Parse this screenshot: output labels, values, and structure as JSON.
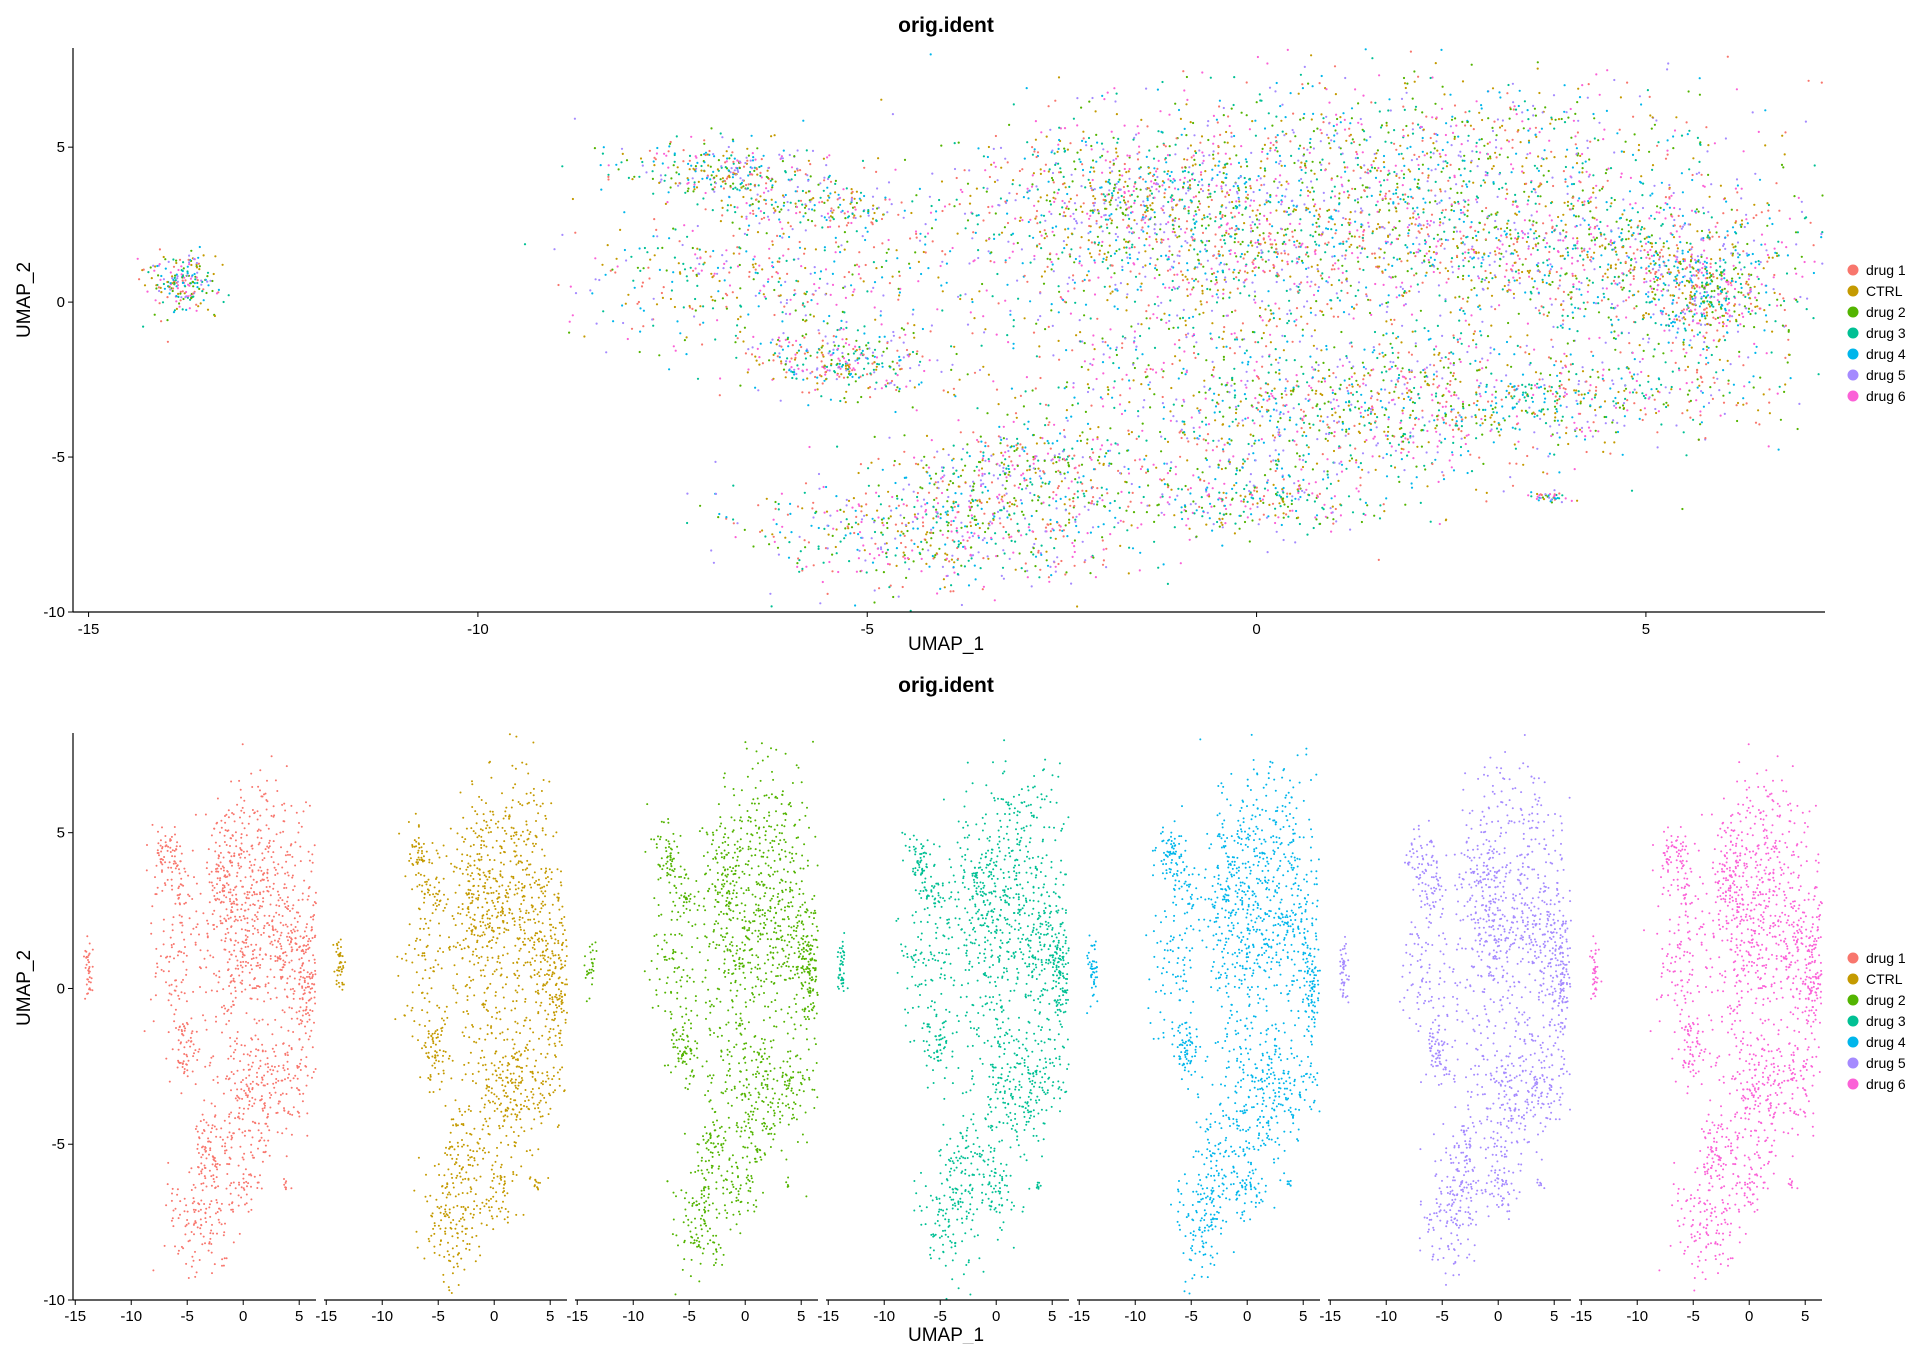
{
  "chart_data": [
    {
      "type": "scatter",
      "title": "orig.ident",
      "xlabel": "UMAP_1",
      "ylabel": "UMAP_2",
      "xlim": [
        -15.2,
        7.3
      ],
      "ylim": [
        -10.0,
        8.2
      ],
      "x_ticks": [
        -15,
        -10,
        -5,
        0,
        5
      ],
      "y_ticks": [
        -10,
        -5,
        0,
        5
      ],
      "legend_position": "right",
      "legend": [
        "drug 1",
        "CTRL",
        "drug 2",
        "drug 3",
        "drug 4",
        "drug 5",
        "drug 6"
      ],
      "series": [
        {
          "name": "drug 1",
          "color": "#F8766D"
        },
        {
          "name": "CTRL",
          "color": "#C49A00"
        },
        {
          "name": "drug 2",
          "color": "#53B400"
        },
        {
          "name": "drug 3",
          "color": "#00C094"
        },
        {
          "name": "drug 4",
          "color": "#00B6EB"
        },
        {
          "name": "drug 5",
          "color": "#A58AFF"
        },
        {
          "name": "drug 6",
          "color": "#FB61D7"
        }
      ],
      "clusters": [
        {
          "cx": -13.8,
          "cy": 0.6,
          "sx": 0.22,
          "sy": 0.5,
          "w": 0.02
        },
        {
          "cx": -6.8,
          "cy": 4.2,
          "sx": 0.7,
          "sy": 0.5,
          "w": 0.03
        },
        {
          "cx": -5.6,
          "cy": 3.0,
          "sx": 0.6,
          "sy": 0.4,
          "w": 0.02
        },
        {
          "cx": -6.2,
          "cy": 0.6,
          "sx": 1.3,
          "sy": 1.2,
          "w": 0.05
        },
        {
          "cx": -5.3,
          "cy": -2.0,
          "sx": 0.6,
          "sy": 0.5,
          "w": 0.03
        },
        {
          "cx": -1.5,
          "cy": 3.8,
          "sx": 1.2,
          "sy": 0.9,
          "w": 0.05
        },
        {
          "cx": -1.0,
          "cy": 1.8,
          "sx": 1.6,
          "sy": 1.1,
          "w": 0.07
        },
        {
          "cx": 1.8,
          "cy": 5.0,
          "sx": 2.2,
          "sy": 1.2,
          "w": 0.09
        },
        {
          "cx": 2.5,
          "cy": 2.0,
          "sx": 2.4,
          "sy": 1.2,
          "w": 0.11
        },
        {
          "cx": 4.5,
          "cy": 1.0,
          "sx": 1.2,
          "sy": 1.5,
          "w": 0.06
        },
        {
          "cx": 5.8,
          "cy": 0.2,
          "sx": 0.45,
          "sy": 1.0,
          "w": 0.05
        },
        {
          "cx": -0.5,
          "cy": -1.5,
          "sx": 1.8,
          "sy": 1.4,
          "w": 0.05
        },
        {
          "cx": 3.0,
          "cy": -3.0,
          "sx": 2.0,
          "sy": 0.8,
          "w": 0.09
        },
        {
          "cx": 0.5,
          "cy": -4.5,
          "sx": 1.8,
          "sy": 1.2,
          "w": 0.06
        },
        {
          "cx": -4.0,
          "cy": -7.5,
          "sx": 1.3,
          "sy": 0.9,
          "w": 0.07
        },
        {
          "cx": -3.0,
          "cy": -5.5,
          "sx": 0.9,
          "sy": 0.8,
          "w": 0.04
        },
        {
          "cx": 0.0,
          "cy": -6.5,
          "sx": 0.7,
          "sy": 0.5,
          "w": 0.02
        },
        {
          "cx": 3.8,
          "cy": -6.3,
          "sx": 0.15,
          "sy": 0.1,
          "w": 0.005
        }
      ]
    },
    {
      "type": "scatter",
      "title": "orig.ident",
      "xlabel": "UMAP_1",
      "ylabel": "UMAP_2",
      "facets": [
        "drug 1",
        "CTRL",
        "drug 2",
        "drug 3",
        "drug 4",
        "drug 5",
        "drug 6"
      ],
      "xlim": [
        -15.2,
        6.5
      ],
      "ylim": [
        -10.0,
        8.2
      ],
      "x_ticks": [
        -15,
        -10,
        -5,
        0,
        5
      ],
      "y_ticks": [
        -10,
        -5,
        0,
        5
      ],
      "legend_position": "right",
      "legend": [
        "drug 1",
        "CTRL",
        "drug 2",
        "drug 3",
        "drug 4",
        "drug 5",
        "drug 6"
      ],
      "series": [
        {
          "name": "drug 1",
          "color": "#F8766D"
        },
        {
          "name": "CTRL",
          "color": "#C49A00"
        },
        {
          "name": "drug 2",
          "color": "#53B400"
        },
        {
          "name": "drug 3",
          "color": "#00C094"
        },
        {
          "name": "drug 4",
          "color": "#00B6EB"
        },
        {
          "name": "drug 5",
          "color": "#A58AFF"
        },
        {
          "name": "drug 6",
          "color": "#FB61D7"
        }
      ]
    }
  ]
}
